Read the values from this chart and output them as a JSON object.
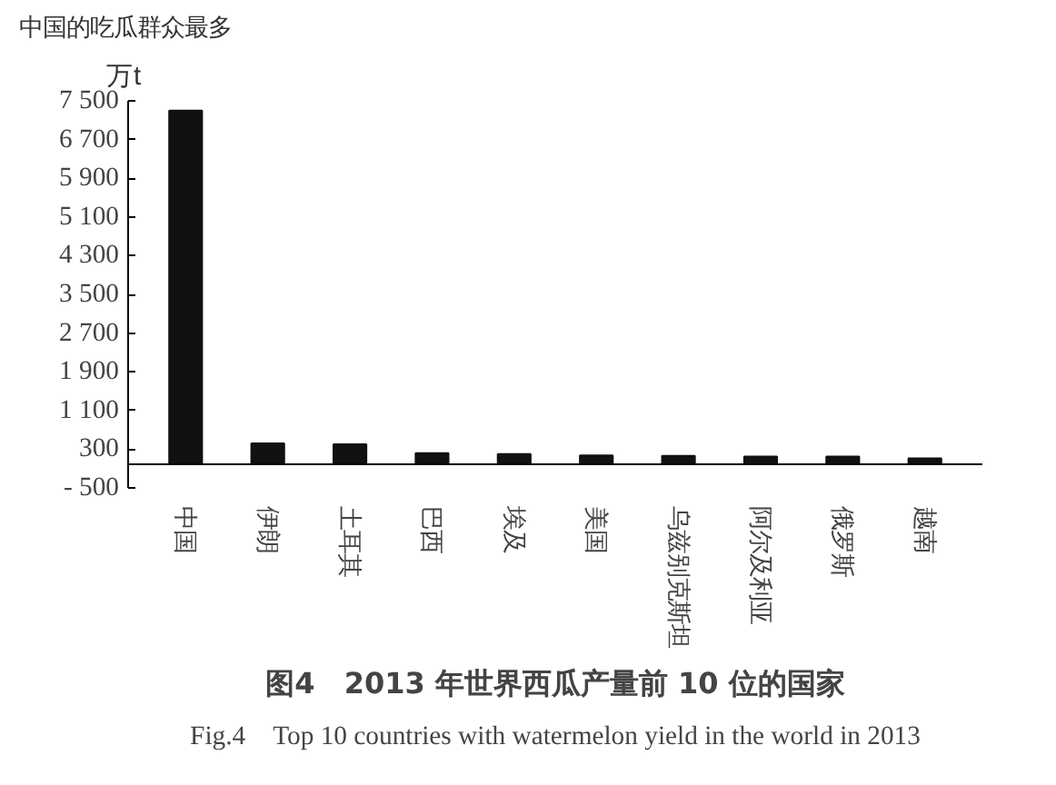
{
  "chart_data": {
    "type": "bar",
    "title": "中国的吃瓜群众最多",
    "ylabel": "万t",
    "categories": [
      "中国",
      "伊朗",
      "土耳其",
      "巴西",
      "埃及",
      "美国",
      "乌兹别克斯坦",
      "阿尔及利亚",
      "俄罗斯",
      "越南"
    ],
    "values": [
      7300,
      420,
      400,
      220,
      200,
      170,
      160,
      150,
      150,
      110
    ],
    "color": "#111111",
    "ylim": [
      -500,
      7500
    ],
    "yticks": [
      {
        "value": -500,
        "label": "- 500"
      },
      300,
      {
        "value": 1100,
        "label": "1 100"
      },
      {
        "value": 1900,
        "label": "1 900"
      },
      {
        "value": 2700,
        "label": "2 700"
      },
      {
        "value": 3500,
        "label": "3 500"
      },
      {
        "value": 4300,
        "label": "4 300"
      },
      {
        "value": 5100,
        "label": "5 100"
      },
      {
        "value": 5900,
        "label": "5 900"
      },
      {
        "value": 6700,
        "label": "6 700"
      },
      {
        "value": 7500,
        "label": "7 500"
      }
    ],
    "grid": false,
    "annotations": [
      "图4　2013 年世界西瓜产量前 10 位的国家",
      "Fig.4　Top 10 countries with watermelon yield in the world in 2013"
    ]
  }
}
